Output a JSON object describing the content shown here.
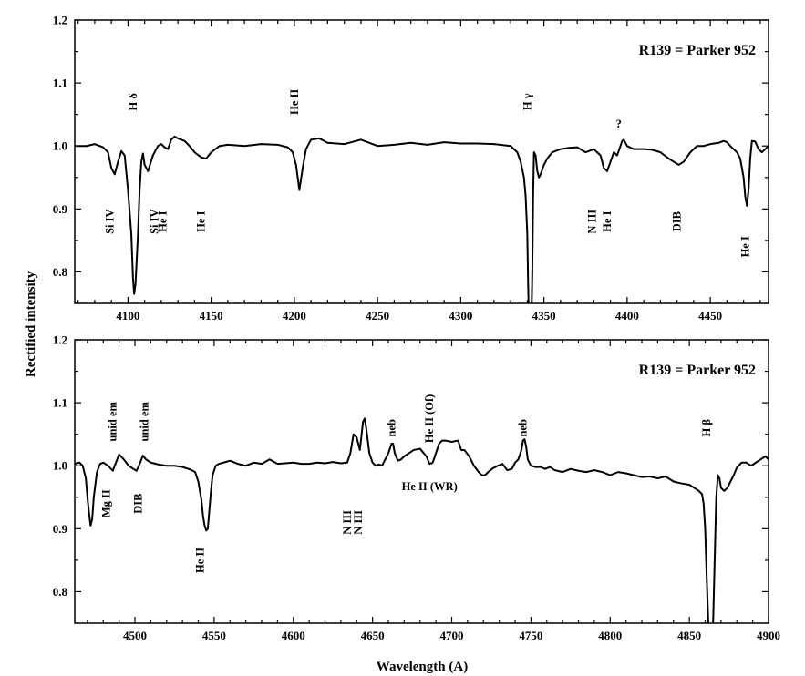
{
  "figure": {
    "xlabel": "Wavelength (A)",
    "ylabel": "Rectified intensity"
  },
  "chart_data": [
    {
      "type": "line",
      "title": "R139 = Parker 952",
      "xlabel": "Wavelength (A)",
      "ylabel": "Rectified intensity",
      "xlim": [
        4068,
        4485
      ],
      "ylim": [
        0.75,
        1.2
      ],
      "x_ticks": [
        4100,
        4150,
        4200,
        4250,
        4300,
        4350,
        4400,
        4450
      ],
      "y_ticks": [
        0.8,
        0.9,
        1.0,
        1.1,
        1.2
      ],
      "y_tick_labels": [
        "0.8",
        "0.9",
        "1.0",
        "1.1",
        "1.2"
      ],
      "grid": false,
      "series": [
        {
          "x": [
            4068,
            4075,
            4080,
            4085,
            4088,
            4090,
            4092,
            4094,
            4096,
            4098,
            4100,
            4102,
            4103,
            4103.7,
            4104.5,
            4106,
            4107,
            4108,
            4109,
            4110,
            4112,
            4115,
            4118,
            4120,
            4122,
            4124,
            4126,
            4128,
            4130,
            4134,
            4137,
            4140,
            4144,
            4147,
            4150,
            4155,
            4160,
            4170,
            4180,
            4190,
            4196,
            4199,
            4201,
            4203,
            4205,
            4207,
            4210,
            4215,
            4220,
            4230,
            4240,
            4250,
            4260,
            4270,
            4280,
            4290,
            4300,
            4310,
            4320,
            4330,
            4334,
            4336,
            4338,
            4339,
            4340,
            4340.5,
            4341,
            4341.5,
            4342,
            4342.5,
            4343,
            4343.5,
            4344,
            4345,
            4346,
            4347,
            4348,
            4350,
            4352,
            4355,
            4360,
            4365,
            4370,
            4375,
            4380,
            4384,
            4386,
            4388,
            4390,
            4392,
            4394,
            4396,
            4397,
            4398,
            4400,
            4404,
            4410,
            4415,
            4420,
            4425,
            4428,
            4431,
            4434,
            4438,
            4442,
            4446,
            4450,
            4455,
            4458,
            4460,
            4462,
            4464,
            4466,
            4468,
            4470,
            4471,
            4472,
            4473,
            4474,
            4475,
            4477,
            4479,
            4481,
            4483,
            4485
          ],
          "y": [
            1.0,
            1.0,
            1.003,
            0.998,
            0.99,
            0.965,
            0.955,
            0.975,
            0.992,
            0.985,
            0.93,
            0.86,
            0.79,
            0.765,
            0.78,
            0.86,
            0.93,
            0.975,
            0.988,
            0.97,
            0.96,
            0.985,
            1.0,
            1.003,
            0.998,
            0.995,
            1.01,
            1.015,
            1.012,
            1.008,
            1.0,
            0.99,
            0.982,
            0.98,
            0.99,
            1.0,
            1.002,
            1.0,
            1.003,
            1.002,
            0.998,
            0.99,
            0.97,
            0.93,
            0.965,
            0.995,
            1.01,
            1.012,
            1.005,
            1.003,
            1.01,
            1.0,
            1.002,
            1.005,
            1.002,
            1.006,
            1.004,
            1.004,
            1.003,
            1.0,
            0.99,
            0.975,
            0.95,
            0.92,
            0.86,
            0.78,
            0.72,
            0.7,
            0.7,
            0.72,
            0.8,
            0.92,
            0.99,
            0.985,
            0.96,
            0.95,
            0.955,
            0.97,
            0.98,
            0.99,
            0.995,
            0.997,
            0.998,
            0.99,
            0.995,
            0.985,
            0.965,
            0.96,
            0.975,
            0.99,
            0.985,
            1.0,
            1.008,
            1.01,
            1.0,
            0.995,
            0.995,
            0.994,
            0.99,
            0.98,
            0.975,
            0.97,
            0.975,
            0.99,
            1.0,
            1.0,
            1.003,
            1.005,
            1.008,
            1.006,
            1.0,
            0.995,
            0.99,
            0.98,
            0.95,
            0.92,
            0.905,
            0.93,
            0.98,
            1.008,
            1.007,
            0.995,
            0.99,
            0.995,
            1.0
          ]
        }
      ],
      "annotations": [
        {
          "text": "H δ",
          "x": 4103,
          "y": 1.07
        },
        {
          "text": "He II",
          "x": 4200,
          "y": 1.07
        },
        {
          "text": "H γ",
          "x": 4340,
          "y": 1.07
        },
        {
          "text": "?",
          "x": 4395,
          "y": 1.035
        },
        {
          "text": "Si IV",
          "x": 4089,
          "y": 0.88
        },
        {
          "text": "Si IV",
          "x": 4116,
          "y": 0.88
        },
        {
          "text": "He I",
          "x": 4121,
          "y": 0.88
        },
        {
          "text": "He I",
          "x": 4144,
          "y": 0.88
        },
        {
          "text": "N III",
          "x": 4379,
          "y": 0.88
        },
        {
          "text": "He I",
          "x": 4388,
          "y": 0.88
        },
        {
          "text": "DIB",
          "x": 4430,
          "y": 0.88
        },
        {
          "text": "He I",
          "x": 4471,
          "y": 0.84
        }
      ]
    },
    {
      "type": "line",
      "title": "R139 = Parker 952",
      "xlabel": "Wavelength (A)",
      "ylabel": "Rectified intensity",
      "xlim": [
        4462,
        4900
      ],
      "ylim": [
        0.75,
        1.2
      ],
      "x_ticks": [
        4500,
        4550,
        4600,
        4650,
        4700,
        4750,
        4800,
        4850,
        4900
      ],
      "y_ticks": [
        0.8,
        0.9,
        1.0,
        1.1,
        1.2
      ],
      "y_tick_labels": [
        "0.8",
        "0.9",
        "1.0",
        "1.1",
        "1.2"
      ],
      "grid": false,
      "series": [
        {
          "x": [
            4462,
            4465,
            4467,
            4469,
            4470,
            4471,
            4472,
            4473,
            4474,
            4476,
            4478,
            4480,
            4483,
            4486,
            4488,
            4490,
            4493,
            4496,
            4499,
            4501,
            4503,
            4505,
            4507,
            4510,
            4515,
            4520,
            4525,
            4530,
            4535,
            4538,
            4540,
            4542,
            4543,
            4544,
            4545,
            4546,
            4547,
            4548,
            4549,
            4551,
            4553,
            4556,
            4560,
            4565,
            4570,
            4575,
            4580,
            4585,
            4590,
            4595,
            4600,
            4605,
            4610,
            4615,
            4620,
            4625,
            4630,
            4634,
            4636,
            4638,
            4640,
            4642,
            4644,
            4645,
            4646,
            4648,
            4650,
            4652,
            4654,
            4656,
            4658,
            4660,
            4662,
            4663,
            4664,
            4666,
            4668,
            4670,
            4673,
            4676,
            4680,
            4684,
            4686,
            4688,
            4690,
            4692,
            4694,
            4696,
            4700,
            4704,
            4706,
            4708,
            4711,
            4714,
            4717,
            4719,
            4721,
            4723,
            4726,
            4729,
            4732,
            4735,
            4738,
            4740,
            4742,
            4744,
            4745,
            4746,
            4747,
            4748,
            4750,
            4753,
            4756,
            4759,
            4762,
            4765,
            4770,
            4775,
            4780,
            4785,
            4790,
            4795,
            4800,
            4805,
            4810,
            4815,
            4820,
            4825,
            4830,
            4835,
            4840,
            4845,
            4850,
            4853,
            4856,
            4858,
            4859,
            4860,
            4861,
            4862,
            4863,
            4864,
            4865,
            4866,
            4867,
            4868,
            4869,
            4870,
            4872,
            4874,
            4876,
            4878,
            4880,
            4883,
            4886,
            4889,
            4892,
            4895,
            4898,
            4900
          ],
          "y": [
            1.003,
            1.005,
            1.0,
            0.98,
            0.95,
            0.925,
            0.905,
            0.915,
            0.95,
            0.99,
            1.003,
            1.005,
            1.0,
            0.992,
            1.005,
            1.018,
            1.01,
            1.0,
            0.995,
            0.992,
            1.003,
            1.016,
            1.01,
            1.005,
            1.002,
            1.0,
            1.0,
            0.998,
            0.994,
            0.99,
            0.975,
            0.945,
            0.92,
            0.905,
            0.897,
            0.9,
            0.93,
            0.96,
            0.985,
            1.0,
            1.003,
            1.005,
            1.008,
            1.003,
            1.0,
            1.005,
            1.003,
            1.01,
            1.003,
            1.004,
            1.005,
            1.003,
            1.003,
            1.005,
            1.004,
            1.006,
            1.004,
            1.005,
            1.02,
            1.05,
            1.045,
            1.025,
            1.07,
            1.075,
            1.06,
            1.02,
            1.005,
            1.0,
            1.002,
            1.0,
            1.01,
            1.02,
            1.035,
            1.035,
            1.02,
            1.008,
            1.01,
            1.015,
            1.02,
            1.025,
            1.027,
            1.015,
            1.003,
            1.005,
            1.02,
            1.035,
            1.04,
            1.04,
            1.038,
            1.04,
            1.025,
            1.025,
            1.015,
            1.0,
            0.99,
            0.985,
            0.985,
            0.99,
            0.996,
            1.0,
            1.003,
            0.993,
            0.995,
            1.005,
            1.01,
            1.025,
            1.04,
            1.042,
            1.03,
            1.01,
            1.0,
            0.998,
            0.998,
            0.995,
            0.998,
            0.993,
            0.99,
            0.995,
            0.992,
            0.99,
            0.993,
            0.99,
            0.985,
            0.99,
            0.988,
            0.985,
            0.982,
            0.983,
            0.98,
            0.983,
            0.975,
            0.972,
            0.97,
            0.965,
            0.96,
            0.955,
            0.94,
            0.9,
            0.82,
            0.75,
            0.7,
            0.7,
            0.75,
            0.85,
            0.95,
            0.985,
            0.98,
            0.965,
            0.96,
            0.965,
            0.975,
            0.985,
            0.997,
            1.005,
            1.005,
            1.0,
            1.005,
            1.01,
            1.015,
            1.01
          ]
        }
      ],
      "annotations": [
        {
          "text": "unid em",
          "x": 4486,
          "y": 1.07
        },
        {
          "text": "unid em",
          "x": 4506,
          "y": 1.07
        },
        {
          "text": "neb",
          "x": 4662,
          "y": 1.06
        },
        {
          "text": "He II (Of)",
          "x": 4686,
          "y": 1.075
        },
        {
          "text": "neb",
          "x": 4745,
          "y": 1.06
        },
        {
          "text": "H β",
          "x": 4861,
          "y": 1.06
        },
        {
          "text": "Mg II",
          "x": 4482,
          "y": 0.94
        },
        {
          "text": "DIB",
          "x": 4502,
          "y": 0.94
        },
        {
          "text": "He II",
          "x": 4541,
          "y": 0.85
        },
        {
          "text": "N III",
          "x": 4634,
          "y": 0.91
        },
        {
          "text": "N III",
          "x": 4641,
          "y": 0.91
        },
        {
          "text": "He II (WR)",
          "x": 4686,
          "y": 0.967
        }
      ]
    }
  ]
}
